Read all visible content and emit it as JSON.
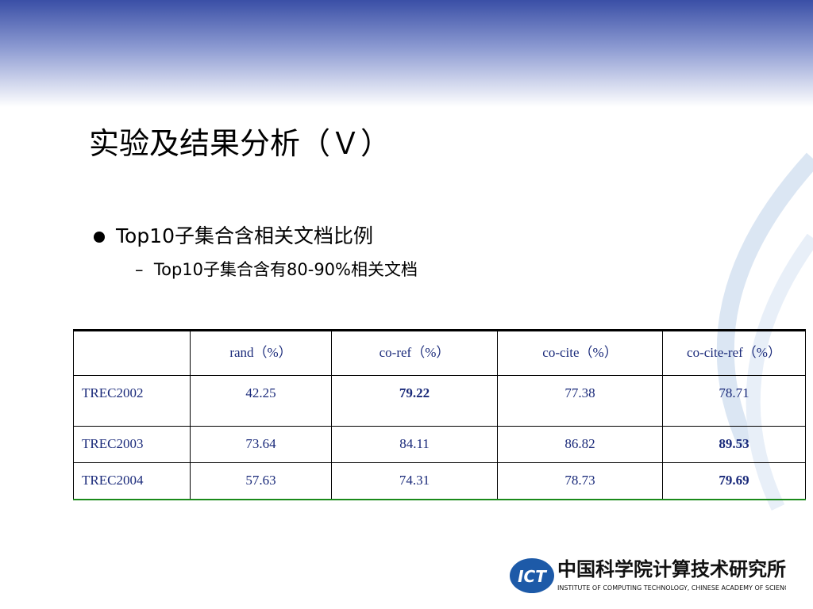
{
  "slide": {
    "title": "实验及结果分析（Ｖ）",
    "bullets": [
      {
        "text": "Top10子集合含相关文档比例",
        "sub": [
          "Top10子集合含有80-90%相关文档"
        ]
      }
    ],
    "table": {
      "columns": [
        "rand（%）",
        "co-ref（%）",
        "co-cite（%）",
        "co-cite-ref（%）"
      ],
      "rows": [
        {
          "name": "TREC2002",
          "values": [
            42.25,
            79.22,
            77.38,
            78.71
          ],
          "best": 1
        },
        {
          "name": "TREC2003",
          "values": [
            73.64,
            84.11,
            86.82,
            89.53
          ],
          "best": 3
        },
        {
          "name": "TREC2004",
          "values": [
            57.63,
            74.31,
            78.73,
            79.69
          ],
          "best": 3
        }
      ]
    },
    "logo": {
      "mark": "ICT",
      "name": "中国科学院计算技术研究所",
      "english": "INSTITUTE OF COMPUTING TECHNOLOGY, CHINESE ACADEMY OF SCIENCES"
    }
  }
}
